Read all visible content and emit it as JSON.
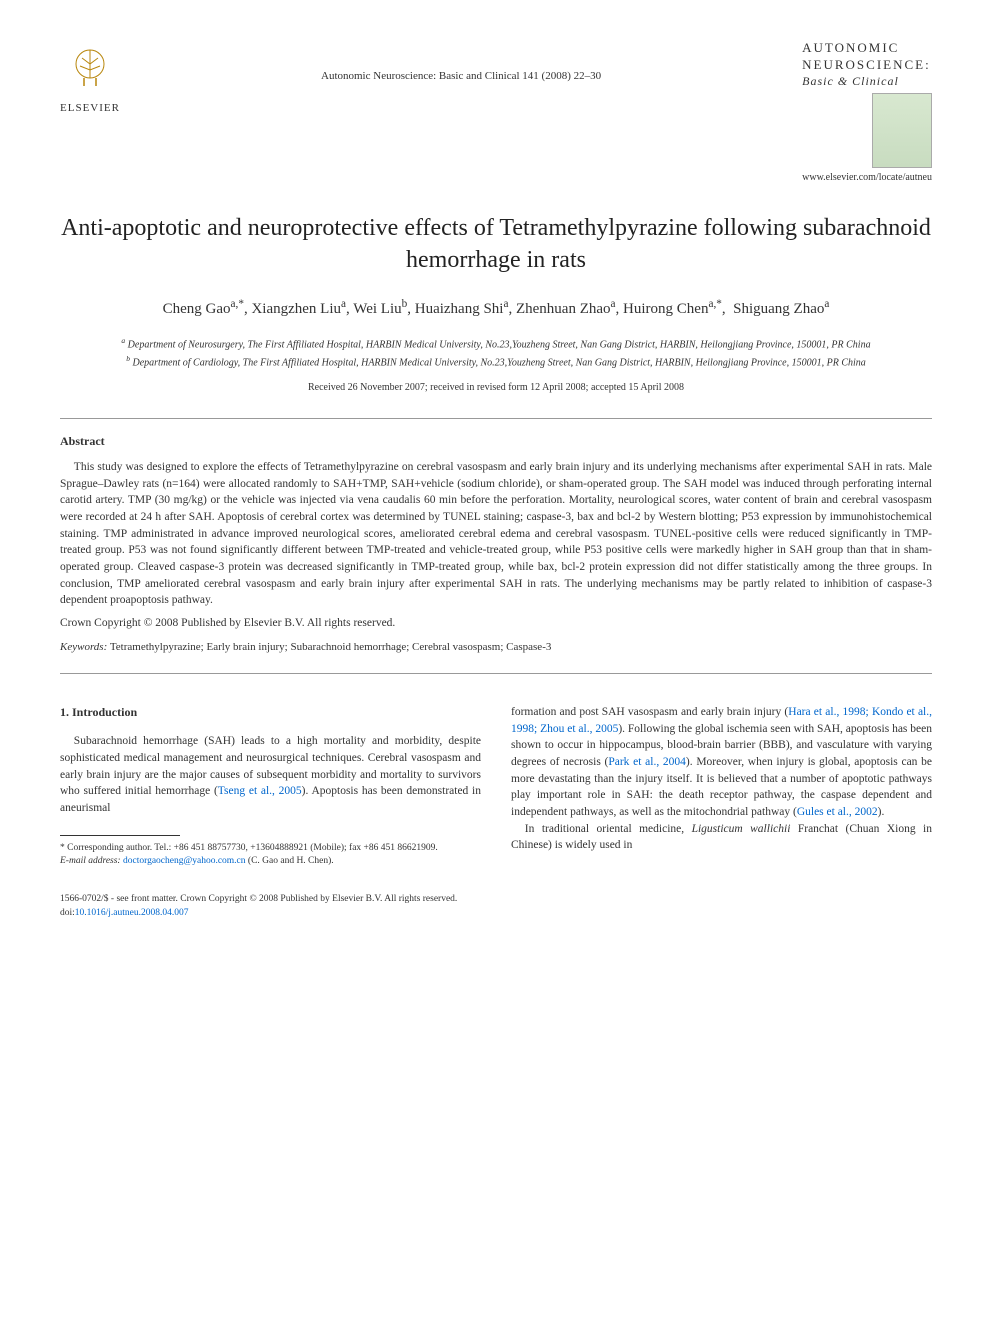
{
  "header": {
    "publisher": "ELSEVIER",
    "journal_ref": "Autonomic Neuroscience: Basic and Clinical 141 (2008) 22–30",
    "journal_name_line1": "AUTONOMIC",
    "journal_name_line2": "NEUROSCIENCE:",
    "journal_subtitle": "Basic & Clinical",
    "journal_url": "www.elsevier.com/locate/autneu"
  },
  "title": "Anti-apoptotic and neuroprotective effects of Tetramethylpyrazine following subarachnoid hemorrhage in rats",
  "authors_html": "Cheng Gao<sup>a,*</sup>, Xiangzhen Liu<sup>a</sup>, Wei Liu<sup>b</sup>, Huaizhang Shi<sup>a</sup>, Zhenhuan Zhao<sup>a</sup>, Huirong Chen<sup>a,*</sup>,&nbsp;&nbsp;Shiguang Zhao<sup>a</sup>",
  "affiliations": {
    "a": "Department of Neurosurgery, The First Affiliated Hospital, HARBIN Medical University, No.23,Youzheng Street, Nan Gang District, HARBIN, Heilongjiang Province, 150001, PR China",
    "b": "Department of Cardiology, The First Affiliated Hospital, HARBIN Medical University, No.23,Youzheng Street, Nan Gang District, HARBIN, Heilongjiang Province, 150001, PR China"
  },
  "dates": "Received 26 November 2007; received in revised form 12 April 2008; accepted 15 April 2008",
  "abstract": {
    "heading": "Abstract",
    "body": "This study was designed to explore the effects of Tetramethylpyrazine on cerebral vasospasm and early brain injury and its underlying mechanisms after experimental SAH in rats. Male Sprague–Dawley rats (n=164) were allocated randomly to SAH+TMP, SAH+vehicle (sodium chloride), or sham-operated group. The SAH model was induced through perforating internal carotid artery. TMP (30 mg/kg) or the vehicle was injected via vena caudalis 60 min before the perforation. Mortality, neurological scores, water content of brain and cerebral vasospasm were recorded at 24 h after SAH. Apoptosis of cerebral cortex was determined by TUNEL staining; caspase-3, bax and bcl-2 by Western blotting; P53 expression by immunohistochemical staining. TMP administrated in advance improved neurological scores, ameliorated cerebral edema and cerebral vasospasm. TUNEL-positive cells were reduced significantly in TMP-treated group. P53 was not found significantly different between TMP-treated and vehicle-treated group, while P53 positive cells were markedly higher in SAH group than that in sham-operated group. Cleaved caspase-3 protein was decreased significantly in TMP-treated group, while bax, bcl-2 protein expression did not differ statistically among the three groups. In conclusion, TMP ameliorated cerebral vasospasm and early brain injury after experimental SAH in rats. The underlying mechanisms may be partly related to inhibition of caspase-3 dependent proapoptosis pathway.",
    "copyright": "Crown Copyright © 2008 Published by Elsevier B.V. All rights reserved."
  },
  "keywords": {
    "label": "Keywords:",
    "text": "Tetramethylpyrazine; Early brain injury; Subarachnoid hemorrhage; Cerebral vasospasm; Caspase-3"
  },
  "intro": {
    "heading": "1. Introduction",
    "p1_pre": "Subarachnoid hemorrhage (SAH) leads to a high mortality and morbidity, despite sophisticated medical management and neurosurgical techniques. Cerebral vasospasm and early brain injury are the major causes of subsequent morbidity and mortality to survivors who suffered initial hemorrhage (",
    "p1_link": "Tseng et al., 2005",
    "p1_post": "). Apoptosis has been demonstrated in aneurismal",
    "p2_pre": "formation and post SAH vasospasm and early brain injury (",
    "p2_link1": "Hara et al., 1998; Kondo et al., 1998; Zhou et al., 2005",
    "p2_mid": "). Following the global ischemia seen with SAH, apoptosis has been shown to occur in hippocampus, blood-brain barrier (BBB), and vasculature with varying degrees of necrosis (",
    "p2_link2": "Park et al., 2004",
    "p2_post": "). Moreover, when injury is global, apoptosis can be more devastating than the injury itself. It is believed that a number of apoptotic pathways play important role in SAH: the death receptor pathway, the caspase dependent and independent pathways, as well as the mitochondrial pathway (",
    "p2_link3": "Gules et al., 2002",
    "p2_end": ").",
    "p3": "In traditional oriental medicine, Ligusticum wallichii Franchat (Chuan Xiong in Chinese) is widely used in"
  },
  "footnote": {
    "corresponding": "* Corresponding author. Tel.: +86 451 88757730, +13604888921 (Mobile); fax +86 451 86621909.",
    "email_label": "E-mail address:",
    "email": "doctorgaocheng@yahoo.com.cn",
    "email_suffix": "(C. Gao and H. Chen)."
  },
  "footer": {
    "line1": "1566-0702/$ - see front matter. Crown Copyright © 2008 Published by Elsevier B.V. All rights reserved.",
    "doi_label": "doi:",
    "doi": "10.1016/j.autneu.2008.04.007"
  }
}
